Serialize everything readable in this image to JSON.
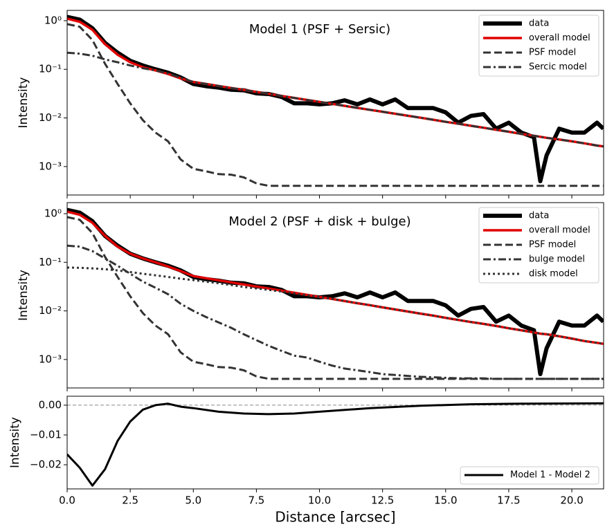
{
  "chart_data": [
    {
      "type": "line",
      "annotation": "Model 1 (PSF + Sersic)",
      "ylabel": "Intensity",
      "log_y": true,
      "legend": "upper right",
      "x": [
        0,
        0.5,
        1,
        1.5,
        2,
        2.5,
        3,
        3.5,
        4,
        4.5,
        5,
        5.5,
        6,
        6.5,
        7,
        7.5,
        8,
        8.5,
        9,
        9.5,
        10,
        10.5,
        11,
        11.5,
        12,
        12.5,
        13,
        13.5,
        14,
        14.5,
        15,
        15.5,
        16,
        16.5,
        17,
        17.5,
        18,
        18.5,
        18.75,
        19,
        19.5,
        20,
        20.5,
        21,
        21.25
      ],
      "xlim": [
        0,
        21.26
      ],
      "xticks": [
        0,
        2.5,
        5,
        7.5,
        10,
        12.5,
        15,
        17.5,
        20
      ],
      "ylim": [
        0.00026,
        1.63
      ],
      "yticks": [
        {
          "value": 1,
          "label": "10⁰"
        },
        {
          "value": 0.1,
          "label": "10⁻¹"
        },
        {
          "value": 0.01,
          "label": "10⁻²"
        },
        {
          "value": 0.001,
          "label": "10⁻³"
        }
      ],
      "series": [
        {
          "name": "data",
          "color": "#000000",
          "width": 6,
          "dash": "solid",
          "values": [
            1.2,
            1.05,
            0.7,
            0.35,
            0.22,
            0.15,
            0.12,
            0.1,
            0.085,
            0.068,
            0.05,
            0.045,
            0.042,
            0.038,
            0.037,
            0.032,
            0.031,
            0.027,
            0.02,
            0.02,
            0.019,
            0.02,
            0.023,
            0.019,
            0.024,
            0.019,
            0.024,
            0.016,
            0.016,
            0.016,
            0.013,
            0.008,
            0.011,
            0.012,
            0.006,
            0.008,
            0.005,
            0.004,
            0.0005,
            0.0017,
            0.006,
            0.005,
            0.005,
            0.008,
            0.006
          ]
        },
        {
          "name": "overall model",
          "color": "#e00000",
          "width": 3.5,
          "dash": "solid",
          "values": [
            1.1,
            0.95,
            0.65,
            0.33,
            0.2,
            0.14,
            0.11,
            0.095,
            0.08,
            0.065,
            0.055,
            0.05,
            0.0455,
            0.0414,
            0.0377,
            0.0343,
            0.0312,
            0.0284,
            0.0258,
            0.0235,
            0.0214,
            0.0195,
            0.0177,
            0.0161,
            0.0147,
            0.0134,
            0.0122,
            0.0111,
            0.0101,
            0.0092,
            0.0083,
            0.0076,
            0.0069,
            0.0063,
            0.0057,
            0.0052,
            0.0047,
            0.0043,
            0.0041,
            0.0039,
            0.0036,
            0.0033,
            0.003,
            0.0027,
            0.0026
          ]
        },
        {
          "name": "PSF model",
          "color": "#333333",
          "width": 3,
          "dash": "dashed",
          "values": [
            0.85,
            0.75,
            0.4,
            0.13,
            0.05,
            0.02,
            0.009,
            0.005,
            0.0033,
            0.0014,
            0.0009,
            0.0008,
            0.0007,
            0.00068,
            0.0006,
            0.00045,
            0.0004,
            0.0004,
            0.0004,
            0.0004,
            0.0004,
            0.0004,
            0.0004,
            0.0004,
            0.0004,
            0.0004,
            0.0004,
            0.0004,
            0.0004,
            0.0004,
            0.0004,
            0.0004,
            0.0004,
            0.0004,
            0.0004,
            0.0004,
            0.0004,
            0.0004,
            0.0004,
            0.0004,
            0.0004,
            0.0004,
            0.0004,
            0.0004,
            0.0004
          ]
        },
        {
          "name": "Sercic model",
          "color": "#333333",
          "width": 3,
          "dash": "dashdot",
          "values": [
            0.22,
            0.21,
            0.19,
            0.16,
            0.14,
            0.12,
            0.105,
            0.095,
            0.082,
            0.067,
            0.055,
            0.05,
            0.0455,
            0.0414,
            0.0377,
            0.0343,
            0.0312,
            0.0284,
            0.0258,
            0.0235,
            0.0214,
            0.0195,
            0.0177,
            0.0161,
            0.0147,
            0.0134,
            0.0122,
            0.0111,
            0.0101,
            0.0092,
            0.0083,
            0.0076,
            0.0069,
            0.0063,
            0.0057,
            0.0052,
            0.0047,
            0.0043,
            0.0041,
            0.0039,
            0.0036,
            0.0033,
            0.003,
            0.0027,
            0.0026
          ]
        }
      ]
    },
    {
      "type": "line",
      "annotation": "Model 2 (PSF + disk + bulge)",
      "ylabel": "Intensity",
      "log_y": true,
      "legend": "upper right",
      "x": [
        0,
        0.5,
        1,
        1.5,
        2,
        2.5,
        3,
        3.5,
        4,
        4.5,
        5,
        5.5,
        6,
        6.5,
        7,
        7.5,
        8,
        8.5,
        9,
        9.5,
        10,
        10.5,
        11,
        11.5,
        12,
        12.5,
        13,
        13.5,
        14,
        14.5,
        15,
        15.5,
        16,
        16.5,
        17,
        17.5,
        18,
        18.5,
        18.75,
        19,
        19.5,
        20,
        20.5,
        21,
        21.25
      ],
      "xlim": [
        0,
        21.26
      ],
      "xticks": [
        0,
        2.5,
        5,
        7.5,
        10,
        12.5,
        15,
        17.5,
        20
      ],
      "ylim": [
        0.00026,
        1.69
      ],
      "yticks": [
        {
          "value": 1,
          "label": "10⁰"
        },
        {
          "value": 0.1,
          "label": "10⁻¹"
        },
        {
          "value": 0.01,
          "label": "10⁻²"
        },
        {
          "value": 0.001,
          "label": "10⁻³"
        }
      ],
      "series": [
        {
          "name": "data",
          "color": "#000000",
          "width": 6,
          "dash": "solid",
          "values": [
            1.2,
            1.05,
            0.7,
            0.35,
            0.22,
            0.15,
            0.12,
            0.1,
            0.085,
            0.068,
            0.05,
            0.045,
            0.042,
            0.038,
            0.037,
            0.032,
            0.031,
            0.027,
            0.02,
            0.02,
            0.019,
            0.02,
            0.023,
            0.019,
            0.024,
            0.019,
            0.024,
            0.016,
            0.016,
            0.016,
            0.013,
            0.008,
            0.011,
            0.012,
            0.006,
            0.008,
            0.005,
            0.004,
            0.0005,
            0.0017,
            0.006,
            0.005,
            0.005,
            0.008,
            0.006
          ]
        },
        {
          "name": "overall model",
          "color": "#e00000",
          "width": 3.5,
          "dash": "solid",
          "values": [
            1.1,
            0.95,
            0.65,
            0.35,
            0.21,
            0.15,
            0.12,
            0.1,
            0.082,
            0.066,
            0.052,
            0.0471,
            0.0427,
            0.0387,
            0.035,
            0.0317,
            0.0288,
            0.0261,
            0.0236,
            0.0214,
            0.0194,
            0.0176,
            0.0159,
            0.0144,
            0.0131,
            0.0118,
            0.0107,
            0.0097,
            0.0088,
            0.008,
            0.0072,
            0.0065,
            0.0059,
            0.0054,
            0.0049,
            0.0044,
            0.004,
            0.0036,
            0.0034,
            0.0033,
            0.003,
            0.0027,
            0.0024,
            0.0022,
            0.0021
          ]
        },
        {
          "name": "PSF model",
          "color": "#333333",
          "width": 3,
          "dash": "dashed",
          "values": [
            0.85,
            0.75,
            0.4,
            0.13,
            0.05,
            0.02,
            0.009,
            0.005,
            0.0033,
            0.0014,
            0.0009,
            0.0008,
            0.0007,
            0.00068,
            0.0006,
            0.00045,
            0.0004,
            0.0004,
            0.0004,
            0.0004,
            0.0004,
            0.0004,
            0.0004,
            0.0004,
            0.0004,
            0.0004,
            0.0004,
            0.0004,
            0.0004,
            0.0004,
            0.0004,
            0.0004,
            0.0004,
            0.0004,
            0.0004,
            0.0004,
            0.0004,
            0.0004,
            0.0004,
            0.0004,
            0.0004,
            0.0004,
            0.0004,
            0.0004,
            0.0004
          ]
        },
        {
          "name": "bulge model",
          "color": "#333333",
          "width": 3,
          "dash": "dashdot",
          "values": [
            0.22,
            0.21,
            0.17,
            0.12,
            0.085,
            0.058,
            0.04,
            0.03,
            0.022,
            0.014,
            0.01,
            0.0075,
            0.0058,
            0.0045,
            0.0033,
            0.0025,
            0.0019,
            0.0015,
            0.0012,
            0.0011,
            0.0009,
            0.00075,
            0.00065,
            0.0006,
            0.00055,
            0.0005,
            0.00048,
            0.00046,
            0.00044,
            0.00043,
            0.00042,
            0.00041,
            0.00041,
            0.00041,
            0.0004,
            0.0004,
            0.0004,
            0.0004,
            0.0004,
            0.0004,
            0.0004,
            0.0004,
            0.0004,
            0.0004,
            0.0004
          ]
        },
        {
          "name": "disk model",
          "color": "#333333",
          "width": 3,
          "dash": "dotted",
          "values": [
            0.078,
            0.077,
            0.075,
            0.072,
            0.068,
            0.063,
            0.058,
            0.054,
            0.05,
            0.046,
            0.043,
            0.04,
            0.037,
            0.034,
            0.031,
            0.029,
            0.027,
            0.025,
            0.023,
            0.021,
            0.0194,
            0.0176,
            0.0159,
            0.0144,
            0.0131,
            0.0118,
            0.0107,
            0.0097,
            0.0088,
            0.008,
            0.0072,
            0.0065,
            0.0059,
            0.0054,
            0.0049,
            0.0044,
            0.004,
            0.0036,
            0.0034,
            0.0033,
            0.003,
            0.0027,
            0.0024,
            0.0022,
            0.0021
          ]
        }
      ]
    },
    {
      "type": "line",
      "ylabel": "Intensity",
      "xlabel": "Distance [arcsec]",
      "legend": "lower right",
      "hline": 0,
      "x": [
        0,
        0.5,
        1,
        1.5,
        2,
        2.5,
        3,
        3.5,
        4,
        4.5,
        5,
        6,
        7,
        8,
        9,
        10,
        12,
        14,
        16,
        18,
        21.25
      ],
      "xlim": [
        0,
        21.26
      ],
      "xticks": [
        {
          "value": 0,
          "label": "0.0"
        },
        {
          "value": 2.5,
          "label": "2.5"
        },
        {
          "value": 5,
          "label": "5.0"
        },
        {
          "value": 7.5,
          "label": "7.5"
        },
        {
          "value": 10,
          "label": "10.0"
        },
        {
          "value": 12.5,
          "label": "12.5"
        },
        {
          "value": 15,
          "label": "15.0"
        },
        {
          "value": 17.5,
          "label": "17.5"
        },
        {
          "value": 20,
          "label": "20.0"
        }
      ],
      "ylim": [
        -0.0281,
        0.003
      ],
      "yticks": [
        {
          "value": 0,
          "label": "0.00"
        },
        {
          "value": -0.01,
          "label": "−0.01"
        },
        {
          "value": -0.02,
          "label": "−0.02"
        }
      ],
      "series": [
        {
          "name": "Model 1 - Model 2",
          "color": "#000000",
          "width": 3,
          "dash": "solid",
          "values": [
            -0.0165,
            -0.021,
            -0.027,
            -0.0215,
            -0.012,
            -0.0055,
            -0.0015,
            0,
            0.0005,
            -0.0005,
            -0.001,
            -0.0022,
            -0.0028,
            -0.003,
            -0.0028,
            -0.0022,
            -0.001,
            -0.0002,
            0.0003,
            0.0005,
            0.0006
          ]
        }
      ]
    }
  ]
}
